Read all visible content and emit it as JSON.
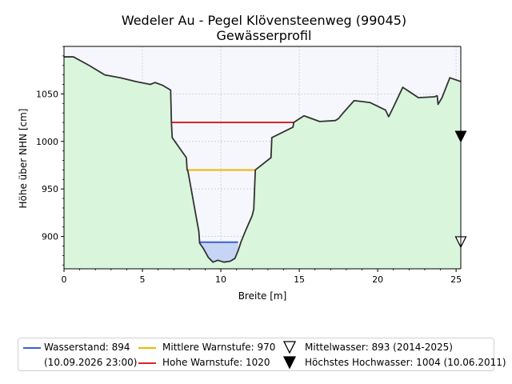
{
  "chart_data": {
    "type": "area",
    "title": "Wedeler Au - Pegel Klövensteenweg (99045)",
    "subtitle": "Gewässerprofil",
    "xlabel": "Breite [m]",
    "ylabel": "Höhe über NHN [cm]",
    "xlim": [
      0,
      25.3
    ],
    "ylim": [
      866,
      1100
    ],
    "xticks": [
      0,
      5,
      10,
      15,
      20,
      25
    ],
    "yticks": [
      900,
      950,
      1000,
      1050
    ],
    "grid": true,
    "legend_position": "bottom",
    "profile": {
      "x": [
        0,
        0.6,
        1.6,
        2.6,
        3.6,
        4.6,
        5.5,
        5.8,
        6.3,
        6.8,
        6.85,
        6.9,
        7.8,
        7.85,
        7.9,
        8.6,
        8.65,
        8.9,
        9.2,
        9.5,
        9.8,
        10.2,
        10.6,
        10.9,
        11.1,
        11.3,
        11.6,
        12.0,
        12.1,
        12.15,
        12.2,
        13.2,
        13.25,
        14.6,
        14.65,
        15.3,
        16.3,
        17.3,
        17.5,
        17.8,
        18.5,
        19.5,
        20.5,
        20.7,
        21.0,
        21.6,
        22.6,
        23.6,
        23.8,
        23.85,
        24.1,
        24.6,
        25.3
      ],
      "y": [
        1089,
        1089,
        1080,
        1070,
        1067,
        1063,
        1060,
        1062,
        1059,
        1054,
        1020,
        1004,
        983,
        970,
        969,
        905,
        893,
        887,
        878,
        873,
        875,
        873,
        874,
        877,
        885,
        895,
        907,
        922,
        929,
        950,
        970,
        983,
        1004,
        1015,
        1020,
        1027,
        1021,
        1022,
        1024,
        1030,
        1043,
        1041,
        1033,
        1026,
        1036,
        1057,
        1046,
        1047,
        1048,
        1039,
        1046,
        1067,
        1063
      ]
    },
    "series": [
      {
        "name": "Wasserstand: 894",
        "value": 894,
        "x_range": [
          8.6,
          11.1
        ],
        "color": "#3a5fd6",
        "fill": "#c6d5f5"
      },
      {
        "name": "Mittlere Warnstufe: 970",
        "value": 970,
        "x_range": [
          7.85,
          12.2
        ],
        "color": "#f0b400"
      },
      {
        "name": "Hohe Warnstufe: 1020",
        "value": 1020,
        "x_range": [
          6.85,
          14.65
        ],
        "color": "#d62728"
      }
    ],
    "markers": [
      {
        "name": "Mittelwasser: 893 (2014-2025)",
        "value": 893,
        "x": 25.3,
        "symbol": "triangle-open"
      },
      {
        "name": "Höchstes Hochwasser: 1004 (10.06.2011)",
        "value": 1004,
        "x": 25.3,
        "symbol": "triangle-filled"
      }
    ],
    "colors": {
      "ground": "#d9f5dc",
      "air": "#f6f7fd",
      "profile_line": "#333333"
    }
  },
  "legend": {
    "water_level_label": "Wasserstand: 894",
    "water_level_date": "(10.09.2026 23:00)",
    "medium_warning_label": "Mittlere Warnstufe: 970",
    "high_warning_label": "Hohe Warnstufe: 1020",
    "mean_water_label": "Mittelwasser: 893 (2014-2025)",
    "highest_flood_label": "Höchstes Hochwasser: 1004 (10.06.2011)"
  }
}
